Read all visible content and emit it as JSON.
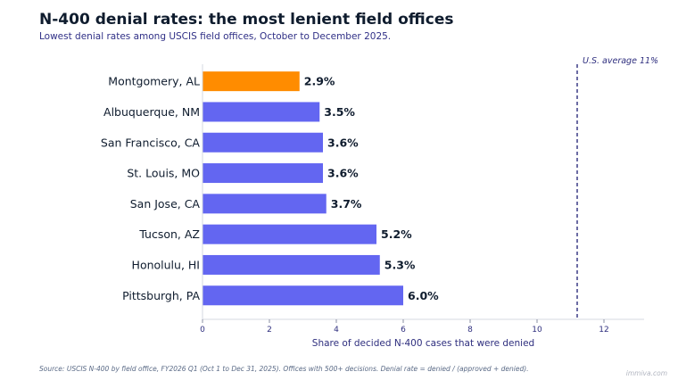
{
  "title": "N-400 denial rates: the most lenient field offices",
  "subtitle": "Lowest denial rates among USCIS field offices, October to December 2025.",
  "source": "Source: USCIS N-400 by field office, FY2026 Q1 (Oct 1 to Dec 31, 2025). Offices with 500+ decisions. Denial rate = denied / (approved + denied).",
  "watermark": "immiva.com",
  "colors": {
    "highlight": "#ff8c00",
    "bar": "#6366f1",
    "reference_line": "#2e2e7e",
    "axis_text": "#2e2e7e",
    "label_text": "#0f1c2e"
  },
  "chart_data": {
    "type": "bar",
    "orientation": "horizontal",
    "categories": [
      "Montgomery, AL",
      "Albuquerque, NM",
      "San Francisco, CA",
      "St. Louis, MO",
      "San Jose, CA",
      "Tucson, AZ",
      "Honolulu, HI",
      "Pittsburgh, PA"
    ],
    "values": [
      2.9,
      3.5,
      3.6,
      3.6,
      3.7,
      5.2,
      5.3,
      6.0
    ],
    "value_labels": [
      "2.9%",
      "3.5%",
      "3.6%",
      "3.6%",
      "3.7%",
      "5.2%",
      "5.3%",
      "6.0%"
    ],
    "highlight_index": 0,
    "xlabel": "Share of decided N-400 cases that were denied",
    "xlim": [
      0,
      13.2
    ],
    "xticks": [
      0,
      2,
      4,
      6,
      8,
      10,
      12
    ],
    "reference_line": {
      "value": 11.2,
      "label": "U.S. average 11%"
    },
    "grid": false
  }
}
